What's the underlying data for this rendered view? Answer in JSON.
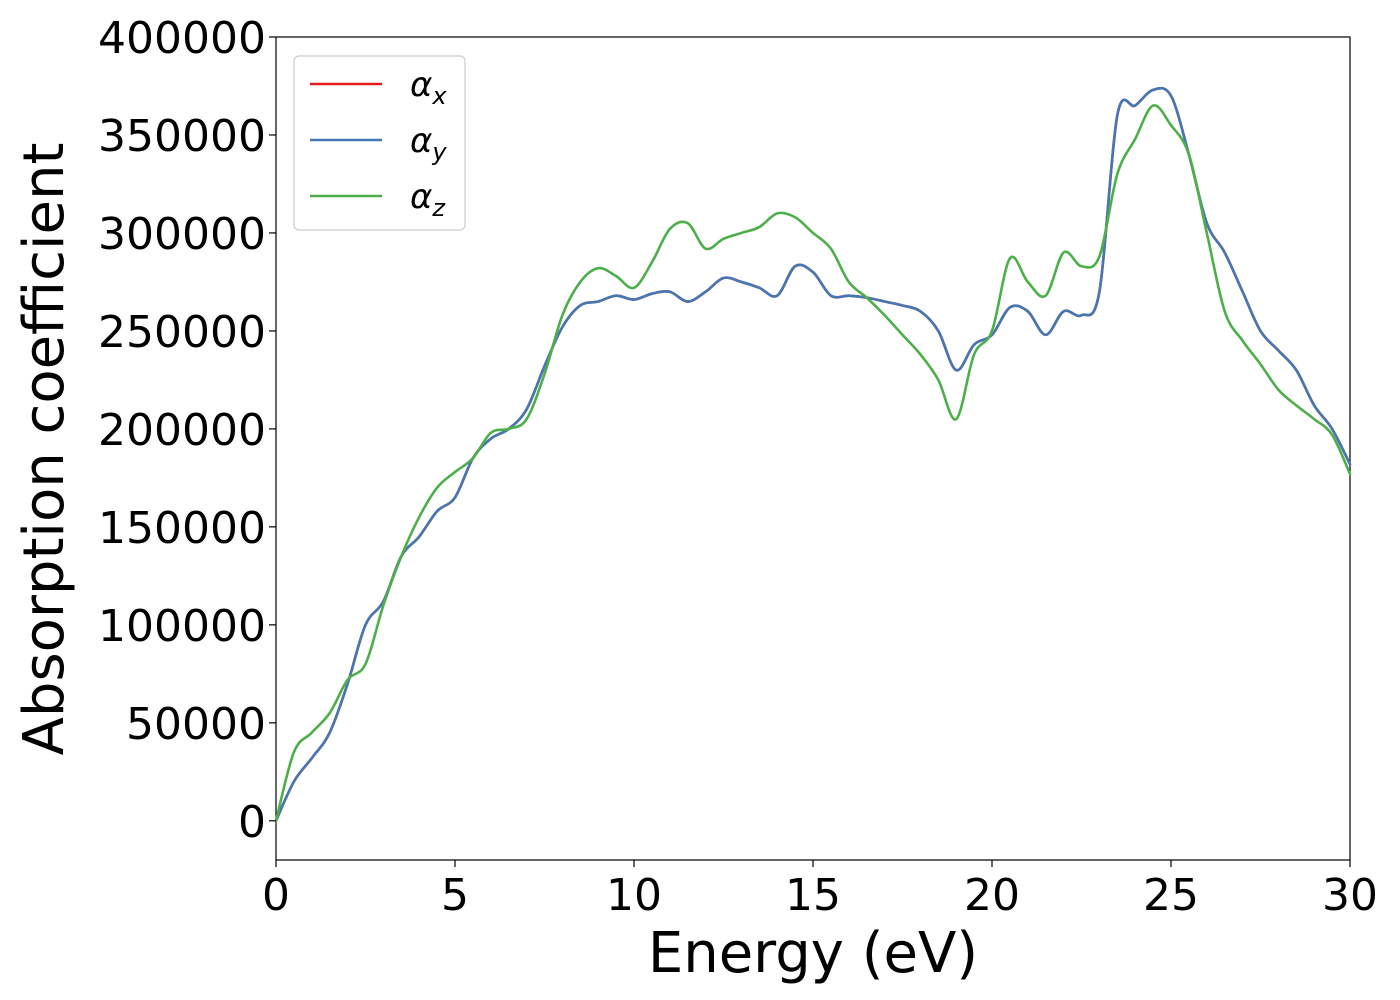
{
  "chart_data": {
    "type": "line",
    "title": "",
    "xlabel": "Energy (eV)",
    "ylabel": "Absorption coefficient",
    "xlim": [
      0,
      30
    ],
    "ylim": [
      -20000,
      400000
    ],
    "xticks": [
      0,
      5,
      10,
      15,
      20,
      25,
      30
    ],
    "yticks": [
      0,
      50000,
      100000,
      150000,
      200000,
      250000,
      300000,
      350000,
      400000
    ],
    "grid": false,
    "legend_position": "upper-left",
    "series": [
      {
        "name": "αx",
        "name_base": "α",
        "name_sub": "x",
        "color": "#e41a1c",
        "x": [
          0,
          0.5,
          1,
          1.5,
          2,
          2.5,
          3,
          3.5,
          4,
          4.5,
          5,
          5.5,
          6,
          6.5,
          7,
          7.5,
          8,
          8.5,
          9,
          9.5,
          10,
          10.5,
          11,
          11.5,
          12,
          12.5,
          13,
          13.5,
          14,
          14.5,
          15,
          15.5,
          16,
          16.5,
          17,
          17.5,
          18,
          18.5,
          19,
          19.5,
          20,
          20.5,
          21,
          21.5,
          22,
          22.5,
          23,
          23.5,
          24,
          24.5,
          25,
          25.5,
          26,
          26.5,
          27,
          27.5,
          28,
          28.5,
          29,
          29.5,
          30
        ],
        "y": [
          0,
          20000,
          32000,
          45000,
          70000,
          100000,
          112000,
          135000,
          145000,
          158000,
          165000,
          185000,
          195000,
          200000,
          210000,
          232000,
          252000,
          263000,
          265000,
          268000,
          266000,
          269000,
          270000,
          265000,
          270000,
          277000,
          275000,
          272000,
          268000,
          283000,
          280000,
          268000,
          268000,
          267000,
          265000,
          263000,
          260000,
          250000,
          230000,
          243000,
          248000,
          262000,
          260000,
          248000,
          260000,
          258000,
          270000,
          360000,
          365000,
          373000,
          370000,
          340000,
          305000,
          290000,
          270000,
          250000,
          240000,
          230000,
          212000,
          200000,
          182000
        ]
      },
      {
        "name": "αy",
        "name_base": "α",
        "name_sub": "y",
        "color": "#4478b4",
        "x": [
          0,
          0.5,
          1,
          1.5,
          2,
          2.5,
          3,
          3.5,
          4,
          4.5,
          5,
          5.5,
          6,
          6.5,
          7,
          7.5,
          8,
          8.5,
          9,
          9.5,
          10,
          10.5,
          11,
          11.5,
          12,
          12.5,
          13,
          13.5,
          14,
          14.5,
          15,
          15.5,
          16,
          16.5,
          17,
          17.5,
          18,
          18.5,
          19,
          19.5,
          20,
          20.5,
          21,
          21.5,
          22,
          22.5,
          23,
          23.5,
          24,
          24.5,
          25,
          25.5,
          26,
          26.5,
          27,
          27.5,
          28,
          28.5,
          29,
          29.5,
          30
        ],
        "y": [
          0,
          20000,
          32000,
          45000,
          70000,
          100000,
          112000,
          135000,
          145000,
          158000,
          165000,
          185000,
          195000,
          200000,
          210000,
          232000,
          252000,
          263000,
          265000,
          268000,
          266000,
          269000,
          270000,
          265000,
          270000,
          277000,
          275000,
          272000,
          268000,
          283000,
          280000,
          268000,
          268000,
          267000,
          265000,
          263000,
          260000,
          250000,
          230000,
          243000,
          248000,
          262000,
          260000,
          248000,
          260000,
          258000,
          270000,
          360000,
          365000,
          373000,
          370000,
          340000,
          305000,
          290000,
          270000,
          250000,
          240000,
          230000,
          212000,
          200000,
          182000
        ]
      },
      {
        "name": "αz",
        "name_base": "α",
        "name_sub": "z",
        "color": "#4daf4a",
        "x": [
          0,
          0.5,
          1,
          1.5,
          2,
          2.5,
          3,
          3.5,
          4,
          4.5,
          5,
          5.5,
          6,
          6.5,
          7,
          7.5,
          8,
          8.5,
          9,
          9.5,
          10,
          10.5,
          11,
          11.5,
          12,
          12.5,
          13,
          13.5,
          14,
          14.5,
          15,
          15.5,
          16,
          16.5,
          17,
          17.5,
          18,
          18.5,
          19,
          19.5,
          20,
          20.5,
          21,
          21.5,
          22,
          22.5,
          23,
          23.5,
          24,
          24.5,
          25,
          25.5,
          26,
          26.5,
          27,
          27.5,
          28,
          28.5,
          29,
          29.5,
          30
        ],
        "y": [
          0,
          35000,
          45000,
          55000,
          72000,
          80000,
          110000,
          135000,
          155000,
          170000,
          178000,
          185000,
          198000,
          200000,
          205000,
          228000,
          258000,
          275000,
          282000,
          278000,
          272000,
          285000,
          302000,
          305000,
          292000,
          297000,
          300000,
          303000,
          310000,
          308000,
          300000,
          292000,
          275000,
          267000,
          258000,
          248000,
          238000,
          225000,
          205000,
          238000,
          250000,
          287000,
          275000,
          268000,
          290000,
          283000,
          288000,
          330000,
          348000,
          365000,
          355000,
          340000,
          300000,
          260000,
          245000,
          233000,
          220000,
          212000,
          205000,
          197000,
          177000
        ]
      }
    ]
  }
}
